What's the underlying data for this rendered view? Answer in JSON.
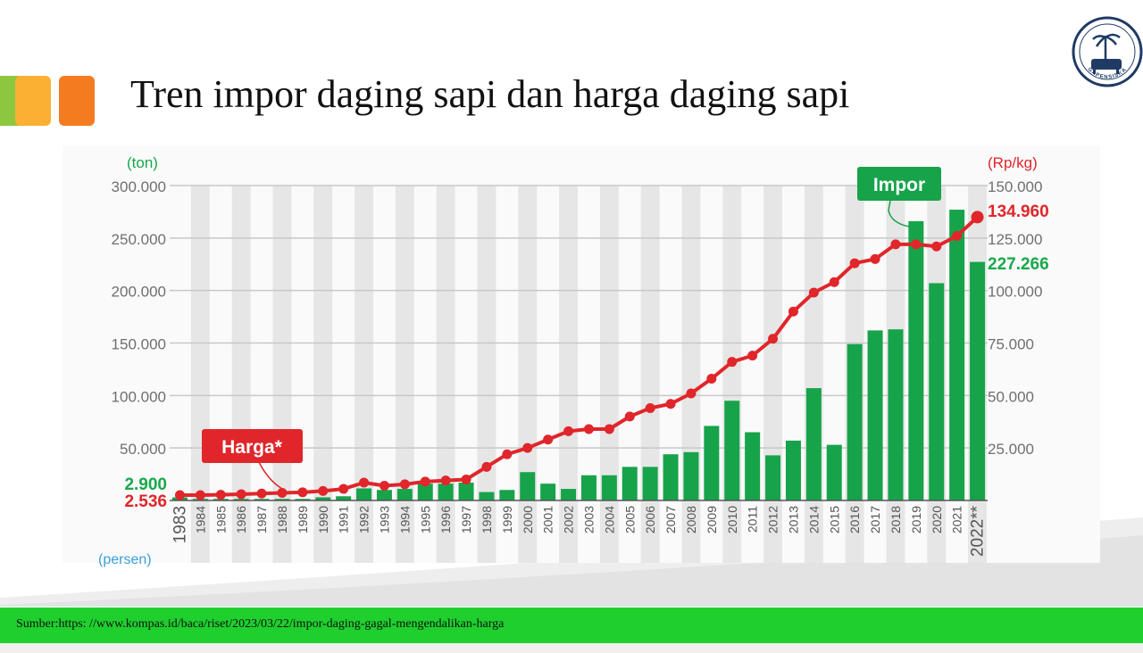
{
  "slide": {
    "title": "Tren impor daging sapi dan harga daging sapi",
    "logo_text": "GAPENSISKA",
    "source": "Sumber:https:  //www.kompas.id/baca/riset/2023/03/22/impor-daging-gagal-mengendalikan-harga",
    "decor_colors": [
      "#8dc63f",
      "#fbb034",
      "#f47b20"
    ],
    "accent_green": "#1fcf2e"
  },
  "chart_data": {
    "type": "bar",
    "title": "",
    "categories": [
      "1983",
      "1984",
      "1985",
      "1986",
      "1987",
      "1988",
      "1989",
      "1990",
      "1991",
      "1992",
      "1993",
      "1994",
      "1995",
      "1996",
      "1997",
      "1998",
      "1999",
      "2000",
      "2001",
      "2002",
      "2003",
      "2004",
      "2005",
      "2006",
      "2007",
      "2008",
      "2009",
      "2010",
      "2011",
      "2012",
      "2013",
      "2014",
      "2015",
      "2016",
      "2017",
      "2018",
      "2019",
      "2020",
      "2021",
      "2022**"
    ],
    "series": [
      {
        "name": "Impor",
        "type": "bar",
        "axis": "left",
        "color": "#17a34a",
        "values": [
          2900,
          1500,
          1500,
          1500,
          1500,
          1500,
          1500,
          3000,
          4000,
          11500,
          10000,
          11000,
          16000,
          16000,
          17000,
          8000,
          10000,
          27000,
          16000,
          11000,
          24000,
          24000,
          32000,
          32000,
          44000,
          46000,
          71000,
          95000,
          65000,
          43000,
          57000,
          107000,
          53000,
          149000,
          162000,
          163000,
          266000,
          207000,
          277000,
          227266
        ]
      },
      {
        "name": "Harga*",
        "type": "line",
        "axis": "right",
        "color": "#e0262a",
        "values": [
          2536,
          2536,
          2700,
          3000,
          3300,
          3600,
          3900,
          4500,
          5500,
          8500,
          7000,
          7700,
          9000,
          9500,
          10000,
          16000,
          22000,
          25000,
          29000,
          33000,
          34000,
          34000,
          40000,
          44000,
          46000,
          51000,
          58000,
          66000,
          69000,
          77000,
          90000,
          99000,
          104000,
          113000,
          115000,
          122000,
          122000,
          121000,
          126000,
          134960
        ]
      }
    ],
    "y_left": {
      "unit": "(ton)",
      "range": [
        0,
        300000
      ],
      "ticks": [
        "50.000",
        "100.000",
        "150.000",
        "200.000",
        "250.000",
        "300.000"
      ]
    },
    "y_right": {
      "unit": "(Rp/kg)",
      "range": [
        0,
        150000
      ],
      "ticks": [
        "25.000",
        "50.000",
        "75.000",
        "100.000",
        "125.000",
        "150.000"
      ]
    },
    "bottom_label": "(persen)",
    "annotations": {
      "start_import": "2.900",
      "start_price": "2.536",
      "end_price": "134.960",
      "end_import": "227.266",
      "callout_import": "Impor",
      "callout_price": "Harga*"
    },
    "grid": true,
    "legend": "callouts"
  }
}
